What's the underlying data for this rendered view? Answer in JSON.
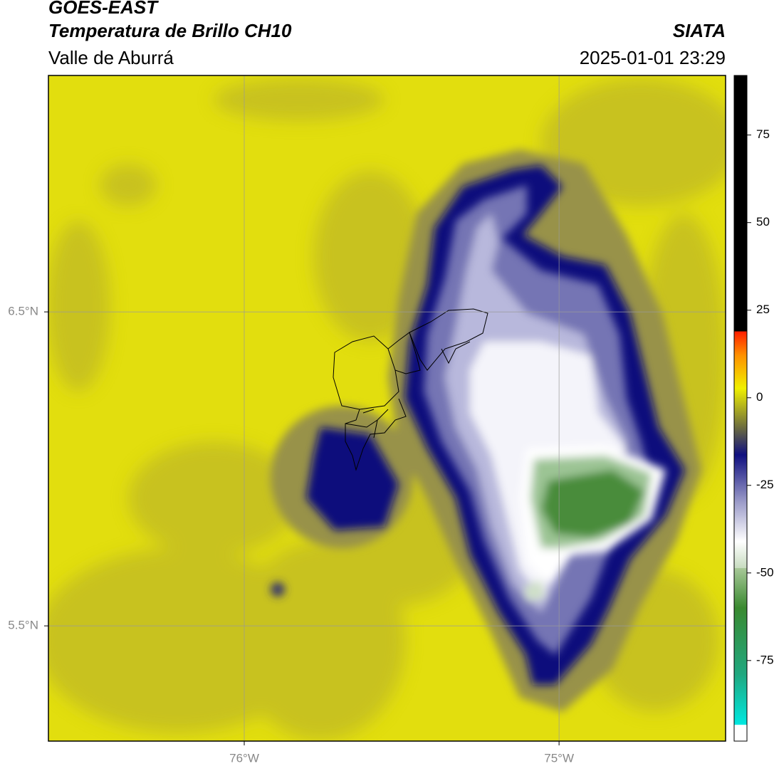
{
  "header": {
    "title": "GOES-EAST",
    "subtitle": "Temperatura de Brillo CH10",
    "region": "Valle de Aburrá",
    "source": "SIATA",
    "datetime": "2025-01-01 23:29"
  },
  "map": {
    "xlim": [
      -76.622,
      -74.471
    ],
    "ylim": [
      5.133,
      7.253
    ],
    "xticks": [
      {
        "value": -76,
        "label": "76°W"
      },
      {
        "value": -75,
        "label": "75°W"
      }
    ],
    "yticks": [
      {
        "value": 6.5,
        "label": "6.5°N"
      },
      {
        "value": 5.5,
        "label": "5.5°N"
      }
    ],
    "grid": true
  },
  "colorbar": {
    "lim": [
      -98,
      92
    ],
    "ticks": [
      75,
      50,
      25,
      0,
      -25,
      -50,
      -75
    ]
  }
}
